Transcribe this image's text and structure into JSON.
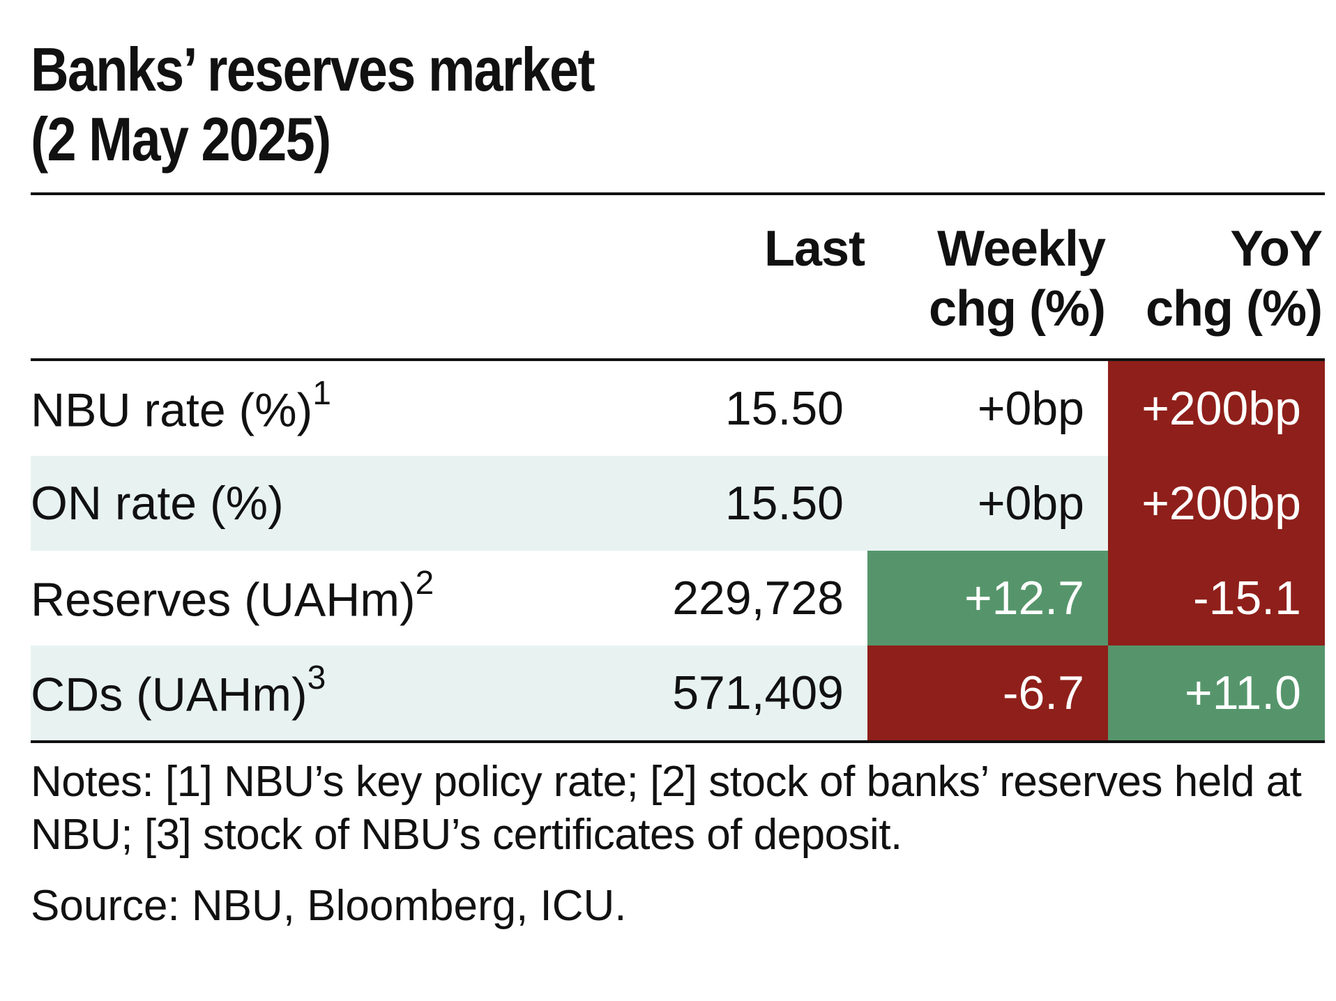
{
  "chart_data": {
    "type": "table",
    "title_line1": "Banks’ reserves market",
    "title_line2": "(2 May 2025)",
    "columns": {
      "last": "Last",
      "weekly_1": "Weekly",
      "weekly_2": "chg (%)",
      "yoy_1": "YoY",
      "yoy_2": "chg (%)"
    },
    "rows": [
      {
        "label": "NBU rate (%)",
        "sup": "1",
        "last": "15.50",
        "weekly": "+0bp",
        "yoy": "+200bp"
      },
      {
        "label": "ON rate (%)",
        "sup": "",
        "last": "15.50",
        "weekly": "+0bp",
        "yoy": "+200bp"
      },
      {
        "label": "Reserves (UAHm)",
        "sup": "2",
        "last": "229,728",
        "weekly": "+12.7",
        "yoy": "-15.1"
      },
      {
        "label": "CDs (UAHm)",
        "sup": "3",
        "last": "571,409",
        "weekly": "-6.7",
        "yoy": "+11.0"
      }
    ],
    "cell_colors": {
      "positive": "#56956b",
      "negative": "#8f1f1a",
      "alt_row": "#e8f3f1"
    },
    "notes": "Notes: [1] NBU’s key policy rate; [2] stock of banks’ reserves held at NBU; [3] stock of NBU’s certificates of deposit.",
    "source": "Source: NBU, Bloomberg, ICU."
  }
}
